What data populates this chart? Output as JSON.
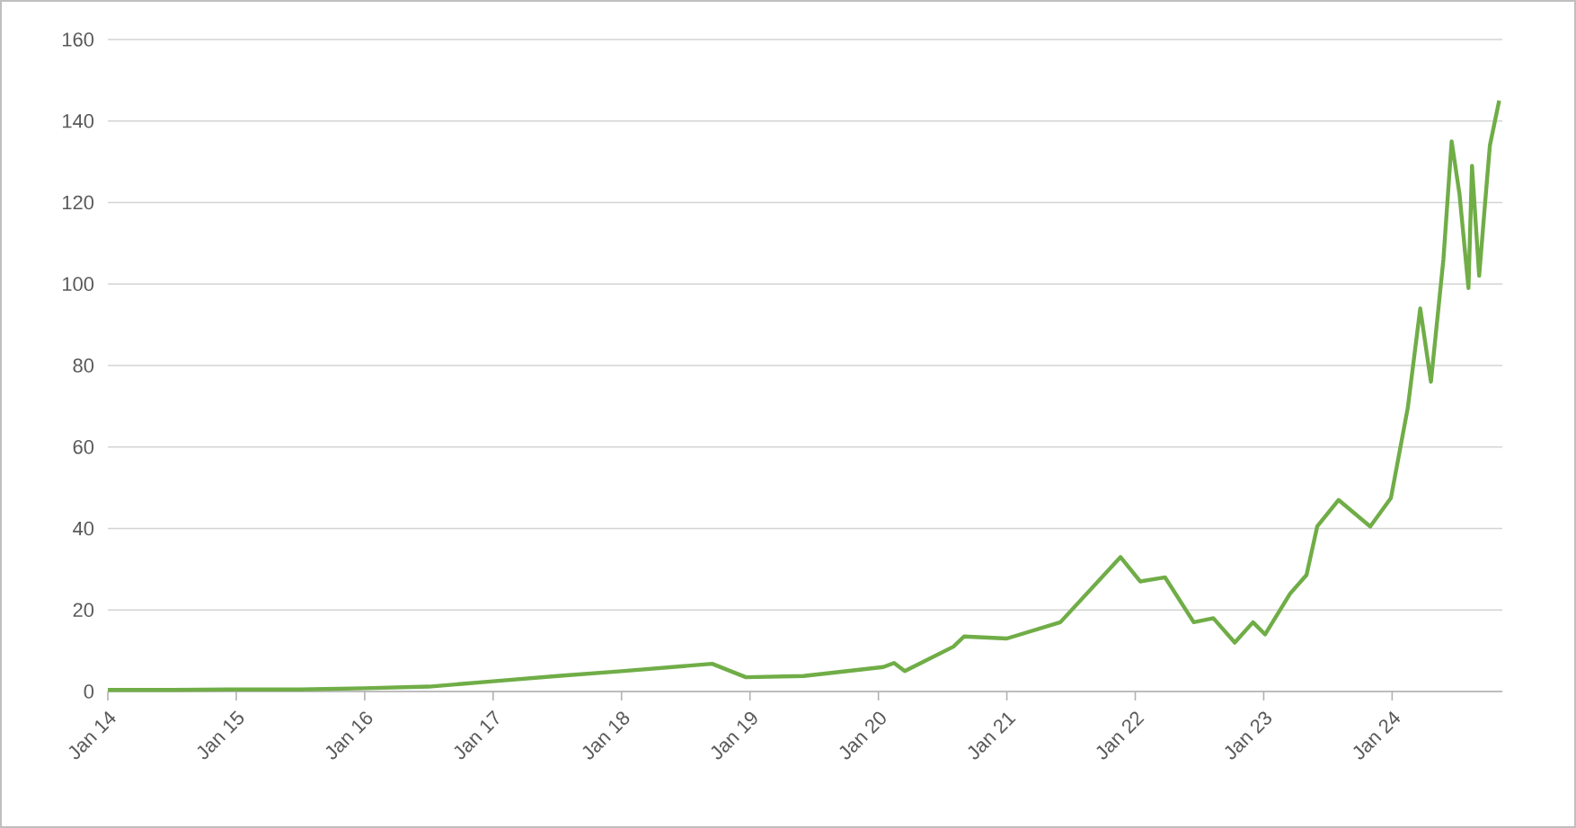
{
  "chart_data": {
    "type": "line",
    "x": [
      "2014-01-01",
      "2014-07-01",
      "2015-01-01",
      "2015-07-01",
      "2016-01-01",
      "2016-07-01",
      "2017-01-01",
      "2017-07-01",
      "2018-01-01",
      "2018-09-15",
      "2018-12-20",
      "2019-06-01",
      "2020-01-15",
      "2020-02-15",
      "2020-03-15",
      "2020-08-01",
      "2020-09-01",
      "2021-01-01",
      "2021-06-01",
      "2021-11-20",
      "2022-01-15",
      "2022-03-25",
      "2022-06-15",
      "2022-08-10",
      "2022-10-10",
      "2022-12-01",
      "2023-01-05",
      "2023-03-15",
      "2023-05-01",
      "2023-06-01",
      "2023-08-01",
      "2023-10-30",
      "2023-12-28",
      "2024-02-15",
      "2024-03-20",
      "2024-04-20",
      "2024-05-25",
      "2024-06-18",
      "2024-07-10",
      "2024-08-05",
      "2024-08-15",
      "2024-09-05",
      "2024-09-20",
      "2024-10-05",
      "2024-11-01"
    ],
    "series": [
      {
        "color": "#70ad47",
        "values": [
          0.4,
          0.4,
          0.5,
          0.5,
          0.8,
          1.2,
          2.5,
          3.8,
          5,
          6.8,
          3.5,
          3.8,
          6,
          7,
          5,
          11,
          13.5,
          13,
          17,
          33,
          27,
          28,
          17,
          18,
          12,
          17,
          14,
          24,
          28.6,
          40.5,
          47,
          40.5,
          47.5,
          69.6,
          94,
          76,
          106,
          135,
          122,
          99,
          129,
          102,
          118,
          134,
          145
        ]
      }
    ],
    "xlim": [
      "2014-01-01",
      "2024-11-10"
    ],
    "ylim": [
      0,
      160
    ],
    "xticks": [
      {
        "value": "2014-01-01",
        "label": "Jan 14"
      },
      {
        "value": "2015-01-01",
        "label": "Jan 15"
      },
      {
        "value": "2016-01-01",
        "label": "Jan 16"
      },
      {
        "value": "2017-01-01",
        "label": "Jan 17"
      },
      {
        "value": "2018-01-01",
        "label": "Jan 18"
      },
      {
        "value": "2019-01-01",
        "label": "Jan 19"
      },
      {
        "value": "2020-01-01",
        "label": "Jan 20"
      },
      {
        "value": "2021-01-01",
        "label": "Jan 21"
      },
      {
        "value": "2022-01-01",
        "label": "Jan 22"
      },
      {
        "value": "2023-01-01",
        "label": "Jan 23"
      },
      {
        "value": "2024-01-01",
        "label": "Jan 24"
      }
    ],
    "yticks": [
      0,
      20,
      40,
      60,
      80,
      100,
      120,
      140,
      160
    ],
    "grid": "y",
    "marker": "none",
    "line_style": "solid"
  }
}
